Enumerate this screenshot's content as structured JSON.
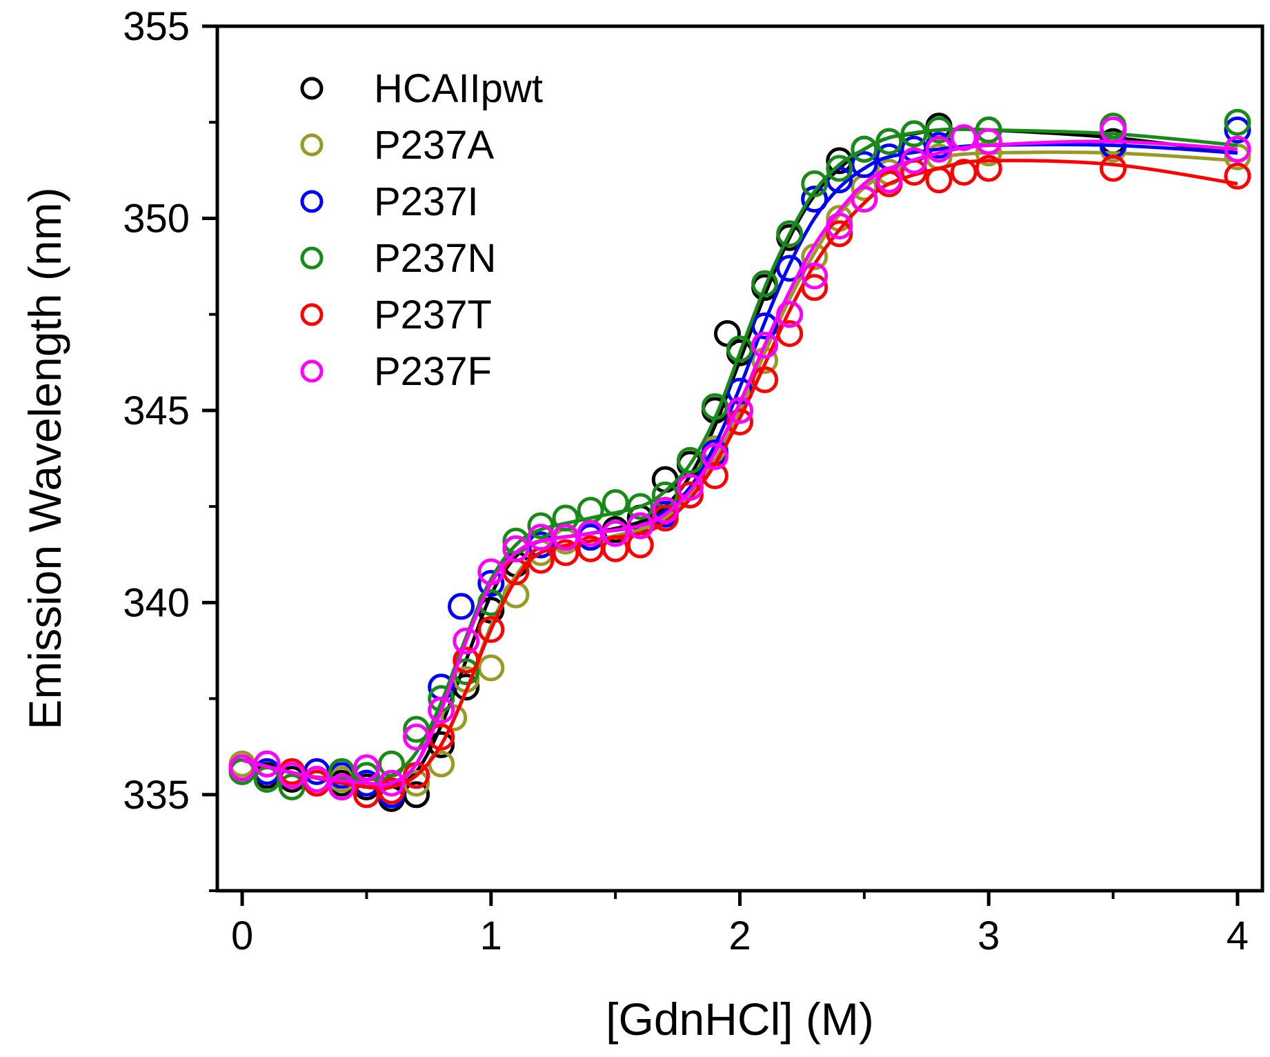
{
  "chart_data": {
    "type": "scatter",
    "xlabel": "[GdnHCl] (M)",
    "ylabel": "Emission Wavelength (nm)",
    "xlim": [
      -0.1,
      4.1
    ],
    "ylim": [
      332.5,
      355
    ],
    "xticks": [
      0,
      1,
      2,
      3,
      4
    ],
    "xtick_labels": [
      "0",
      "1",
      "2",
      "3",
      "4"
    ],
    "yticks": [
      335,
      340,
      345,
      350,
      355
    ],
    "ytick_labels": [
      "335",
      "340",
      "345",
      "350",
      "355"
    ],
    "grid": false,
    "legend_position": "top-left",
    "series": [
      {
        "name": "HCAIIpwt",
        "color": "#000000",
        "x": [
          0.0,
          0.1,
          0.2,
          0.3,
          0.4,
          0.5,
          0.6,
          0.7,
          0.8,
          0.9,
          1.0,
          1.1,
          1.2,
          1.3,
          1.4,
          1.5,
          1.6,
          1.7,
          1.8,
          1.9,
          1.95,
          2.0,
          2.1,
          2.2,
          2.3,
          2.4,
          2.5,
          2.6,
          2.7,
          2.8,
          3.0,
          3.5,
          4.0
        ],
        "y": [
          335.7,
          335.5,
          335.4,
          335.3,
          335.3,
          335.2,
          334.9,
          335.0,
          336.3,
          337.8,
          339.8,
          341.0,
          341.5,
          341.7,
          341.8,
          341.9,
          342.2,
          343.2,
          343.6,
          345.0,
          347.0,
          346.5,
          348.2,
          349.5,
          350.5,
          351.5,
          351.8,
          352.0,
          352.2,
          352.4,
          352.3,
          352.0,
          351.8
        ],
        "fit": [
          [
            0,
            335.9
          ],
          [
            0.25,
            335.5
          ],
          [
            0.5,
            335.2
          ],
          [
            0.6,
            335.2
          ],
          [
            0.7,
            335.6
          ],
          [
            0.8,
            336.8
          ],
          [
            0.9,
            338.5
          ],
          [
            1.0,
            340.2
          ],
          [
            1.1,
            341.2
          ],
          [
            1.2,
            341.6
          ],
          [
            1.4,
            341.8
          ],
          [
            1.6,
            342.1
          ],
          [
            1.7,
            342.5
          ],
          [
            1.8,
            343.3
          ],
          [
            1.9,
            344.6
          ],
          [
            2.0,
            346.3
          ],
          [
            2.1,
            348.0
          ],
          [
            2.2,
            349.5
          ],
          [
            2.3,
            350.6
          ],
          [
            2.4,
            351.3
          ],
          [
            2.5,
            351.8
          ],
          [
            2.6,
            352.1
          ],
          [
            2.7,
            352.2
          ],
          [
            2.8,
            352.3
          ],
          [
            3.0,
            352.3
          ],
          [
            3.5,
            352.1
          ],
          [
            4.0,
            351.7
          ]
        ]
      },
      {
        "name": "P237A",
        "color": "#999926",
        "x": [
          0.0,
          0.1,
          0.2,
          0.3,
          0.4,
          0.5,
          0.6,
          0.7,
          0.8,
          0.85,
          0.9,
          1.0,
          1.1,
          1.2,
          1.3,
          1.4,
          1.5,
          1.6,
          1.7,
          1.8,
          1.9,
          2.0,
          2.1,
          2.2,
          2.3,
          2.4,
          2.5,
          2.6,
          2.7,
          2.8,
          3.0,
          3.5,
          4.0
        ],
        "y": [
          335.8,
          335.6,
          335.5,
          335.4,
          335.4,
          335.3,
          335.1,
          335.3,
          335.8,
          337.0,
          338.0,
          338.3,
          340.2,
          341.3,
          341.6,
          341.7,
          341.8,
          342.0,
          342.4,
          343.0,
          344.0,
          345.0,
          346.3,
          347.5,
          349.0,
          350.0,
          350.8,
          351.2,
          351.5,
          351.6,
          351.7,
          351.8,
          351.6
        ],
        "fit": [
          [
            0,
            335.9
          ],
          [
            0.25,
            335.5
          ],
          [
            0.5,
            335.2
          ],
          [
            0.6,
            335.2
          ],
          [
            0.7,
            335.5
          ],
          [
            0.8,
            336.3
          ],
          [
            0.9,
            337.7
          ],
          [
            1.0,
            339.4
          ],
          [
            1.1,
            340.7
          ],
          [
            1.2,
            341.3
          ],
          [
            1.4,
            341.6
          ],
          [
            1.6,
            341.9
          ],
          [
            1.7,
            342.2
          ],
          [
            1.8,
            342.8
          ],
          [
            1.9,
            343.7
          ],
          [
            2.0,
            345.0
          ],
          [
            2.1,
            346.5
          ],
          [
            2.2,
            347.9
          ],
          [
            2.3,
            349.1
          ],
          [
            2.4,
            350.1
          ],
          [
            2.5,
            350.8
          ],
          [
            2.6,
            351.2
          ],
          [
            2.7,
            351.5
          ],
          [
            2.8,
            351.6
          ],
          [
            3.0,
            351.7
          ],
          [
            3.5,
            351.7
          ],
          [
            4.0,
            351.5
          ]
        ]
      },
      {
        "name": "P237I",
        "color": "#0000ff",
        "x": [
          0.0,
          0.1,
          0.2,
          0.3,
          0.4,
          0.5,
          0.6,
          0.7,
          0.8,
          0.88,
          1.0,
          1.1,
          1.2,
          1.3,
          1.4,
          1.5,
          1.6,
          1.7,
          1.8,
          1.9,
          2.0,
          2.1,
          2.2,
          2.3,
          2.4,
          2.5,
          2.6,
          2.7,
          2.8,
          3.0,
          3.5,
          4.0
        ],
        "y": [
          335.6,
          335.6,
          335.5,
          335.6,
          335.5,
          335.3,
          335.0,
          335.5,
          337.8,
          339.9,
          340.5,
          341.4,
          341.5,
          341.7,
          341.7,
          341.8,
          342.0,
          342.3,
          342.8,
          343.9,
          345.5,
          347.2,
          348.7,
          350.5,
          351.0,
          351.4,
          351.6,
          351.8,
          351.9,
          352.0,
          351.9,
          352.3
        ],
        "fit": [
          [
            0,
            335.9
          ],
          [
            0.25,
            335.5
          ],
          [
            0.5,
            335.3
          ],
          [
            0.6,
            335.3
          ],
          [
            0.7,
            335.8
          ],
          [
            0.8,
            337.3
          ],
          [
            0.9,
            339.1
          ],
          [
            1.0,
            340.6
          ],
          [
            1.1,
            341.3
          ],
          [
            1.2,
            341.6
          ],
          [
            1.4,
            341.8
          ],
          [
            1.6,
            342.0
          ],
          [
            1.7,
            342.4
          ],
          [
            1.8,
            343.0
          ],
          [
            1.9,
            344.1
          ],
          [
            2.0,
            345.6
          ],
          [
            2.1,
            347.3
          ],
          [
            2.2,
            348.8
          ],
          [
            2.3,
            350.0
          ],
          [
            2.4,
            350.8
          ],
          [
            2.5,
            351.3
          ],
          [
            2.6,
            351.6
          ],
          [
            2.8,
            351.8
          ],
          [
            3.0,
            351.9
          ],
          [
            3.5,
            351.9
          ],
          [
            4.0,
            351.7
          ]
        ]
      },
      {
        "name": "P237N",
        "color": "#178a17",
        "x": [
          0.0,
          0.1,
          0.2,
          0.3,
          0.4,
          0.5,
          0.6,
          0.7,
          0.8,
          0.9,
          1.0,
          1.1,
          1.2,
          1.3,
          1.4,
          1.5,
          1.6,
          1.7,
          1.8,
          1.9,
          2.0,
          2.1,
          2.2,
          2.3,
          2.4,
          2.5,
          2.6,
          2.7,
          2.8,
          3.0,
          3.5,
          4.0
        ],
        "y": [
          335.6,
          335.4,
          335.2,
          335.4,
          335.6,
          335.5,
          335.8,
          336.7,
          337.5,
          338.2,
          340.0,
          341.6,
          342.0,
          342.2,
          342.4,
          342.6,
          342.5,
          342.8,
          343.7,
          345.1,
          346.6,
          348.3,
          349.6,
          350.9,
          351.3,
          351.8,
          352.0,
          352.2,
          352.3,
          352.3,
          352.4,
          352.5
        ],
        "fit": [
          [
            0,
            335.9
          ],
          [
            0.25,
            335.5
          ],
          [
            0.5,
            335.4
          ],
          [
            0.6,
            335.5
          ],
          [
            0.7,
            336.1
          ],
          [
            0.8,
            337.4
          ],
          [
            0.9,
            339.1
          ],
          [
            1.0,
            340.6
          ],
          [
            1.1,
            341.5
          ],
          [
            1.2,
            341.9
          ],
          [
            1.4,
            342.2
          ],
          [
            1.6,
            342.5
          ],
          [
            1.7,
            342.9
          ],
          [
            1.8,
            343.6
          ],
          [
            1.9,
            344.8
          ],
          [
            2.0,
            346.5
          ],
          [
            2.1,
            348.2
          ],
          [
            2.2,
            349.6
          ],
          [
            2.3,
            350.7
          ],
          [
            2.4,
            351.4
          ],
          [
            2.5,
            351.8
          ],
          [
            2.6,
            352.1
          ],
          [
            2.8,
            352.3
          ],
          [
            3.0,
            352.3
          ],
          [
            3.5,
            352.2
          ],
          [
            4.0,
            351.9
          ]
        ]
      },
      {
        "name": "P237T",
        "color": "#ff0000",
        "x": [
          0.0,
          0.1,
          0.2,
          0.3,
          0.4,
          0.5,
          0.6,
          0.7,
          0.8,
          0.9,
          1.0,
          1.1,
          1.2,
          1.3,
          1.4,
          1.5,
          1.6,
          1.7,
          1.8,
          1.9,
          2.0,
          2.1,
          2.2,
          2.3,
          2.4,
          2.5,
          2.6,
          2.7,
          2.8,
          2.9,
          3.0,
          3.5,
          4.0
        ],
        "y": [
          335.7,
          335.8,
          335.6,
          335.3,
          335.2,
          335.0,
          335.1,
          335.5,
          336.5,
          338.5,
          339.3,
          340.8,
          341.1,
          341.3,
          341.4,
          341.4,
          341.5,
          342.2,
          342.8,
          343.3,
          344.7,
          345.8,
          347.0,
          348.2,
          349.6,
          350.5,
          350.9,
          351.2,
          351.0,
          351.2,
          351.3,
          351.3,
          351.1
        ],
        "fit": [
          [
            0,
            335.9
          ],
          [
            0.25,
            335.5
          ],
          [
            0.5,
            335.2
          ],
          [
            0.6,
            335.2
          ],
          [
            0.7,
            335.5
          ],
          [
            0.8,
            336.3
          ],
          [
            0.9,
            337.7
          ],
          [
            1.0,
            339.3
          ],
          [
            1.1,
            340.6
          ],
          [
            1.2,
            341.3
          ],
          [
            1.4,
            341.6
          ],
          [
            1.6,
            341.8
          ],
          [
            1.7,
            342.1
          ],
          [
            1.8,
            342.7
          ],
          [
            1.9,
            343.6
          ],
          [
            2.0,
            344.8
          ],
          [
            2.1,
            346.2
          ],
          [
            2.2,
            347.6
          ],
          [
            2.3,
            348.8
          ],
          [
            2.4,
            349.7
          ],
          [
            2.5,
            350.4
          ],
          [
            2.6,
            350.9
          ],
          [
            2.8,
            351.3
          ],
          [
            3.0,
            351.5
          ],
          [
            3.5,
            351.4
          ],
          [
            4.0,
            350.9
          ]
        ]
      },
      {
        "name": "P237F",
        "color": "#ff00ff",
        "x": [
          0.0,
          0.1,
          0.2,
          0.3,
          0.4,
          0.5,
          0.6,
          0.7,
          0.8,
          0.9,
          1.0,
          1.1,
          1.2,
          1.3,
          1.4,
          1.5,
          1.6,
          1.7,
          1.8,
          1.9,
          2.0,
          2.1,
          2.2,
          2.3,
          2.4,
          2.5,
          2.6,
          2.7,
          2.8,
          2.9,
          3.0,
          3.5,
          4.0
        ],
        "y": [
          335.7,
          335.8,
          335.5,
          335.4,
          335.2,
          335.7,
          335.3,
          336.5,
          337.2,
          339.0,
          340.8,
          341.4,
          341.7,
          341.7,
          341.8,
          341.8,
          342.0,
          342.4,
          343.0,
          343.8,
          345.0,
          346.7,
          347.5,
          348.5,
          349.8,
          350.5,
          351.0,
          351.5,
          351.8,
          352.1,
          352.0,
          352.3,
          351.8
        ],
        "fit": [
          [
            0,
            335.9
          ],
          [
            0.25,
            335.5
          ],
          [
            0.5,
            335.3
          ],
          [
            0.6,
            335.3
          ],
          [
            0.7,
            335.8
          ],
          [
            0.8,
            337.2
          ],
          [
            0.9,
            339.0
          ],
          [
            1.0,
            340.5
          ],
          [
            1.1,
            341.3
          ],
          [
            1.2,
            341.6
          ],
          [
            1.4,
            341.8
          ],
          [
            1.6,
            342.0
          ],
          [
            1.7,
            342.3
          ],
          [
            1.8,
            342.9
          ],
          [
            1.9,
            343.9
          ],
          [
            2.0,
            345.2
          ],
          [
            2.1,
            346.7
          ],
          [
            2.2,
            348.1
          ],
          [
            2.3,
            349.3
          ],
          [
            2.4,
            350.2
          ],
          [
            2.5,
            350.9
          ],
          [
            2.6,
            351.3
          ],
          [
            2.8,
            351.7
          ],
          [
            3.0,
            351.9
          ],
          [
            3.5,
            352.0
          ],
          [
            4.0,
            351.8
          ]
        ]
      }
    ]
  }
}
